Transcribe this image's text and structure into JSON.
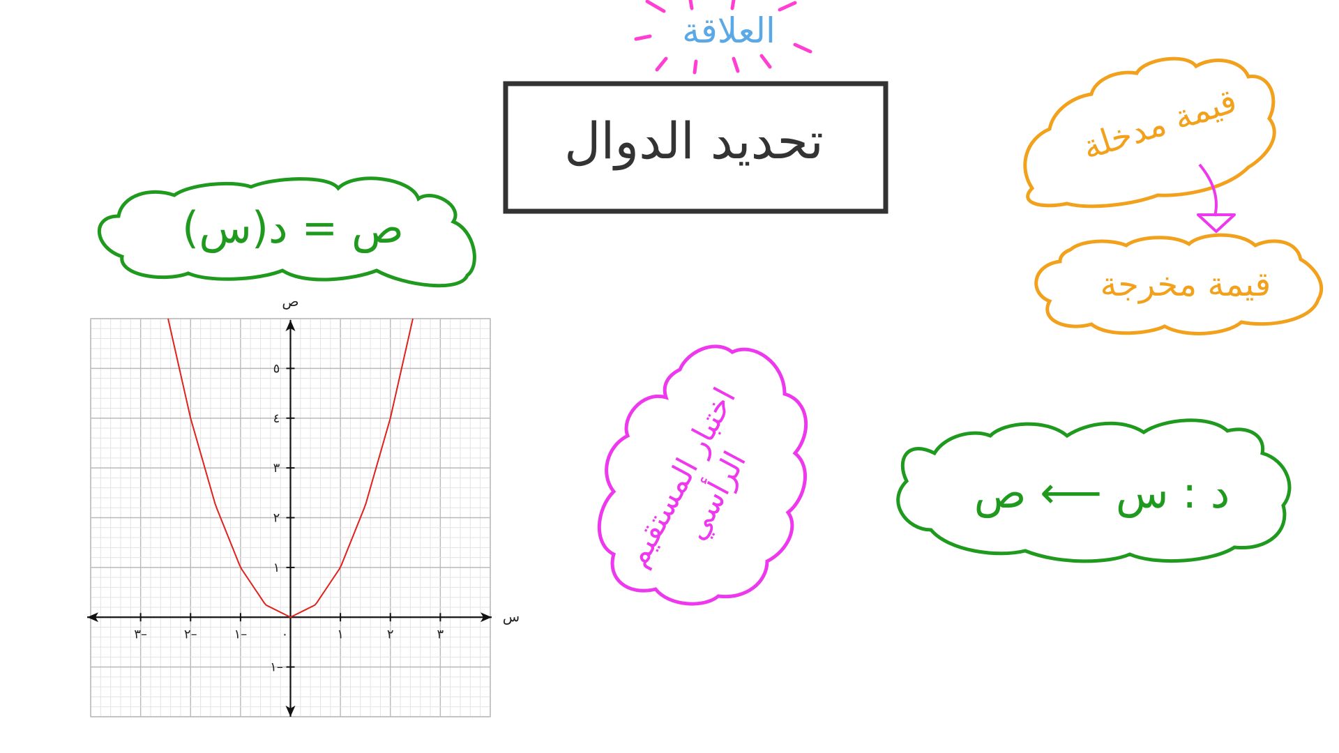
{
  "title": {
    "text": "تحديد الدوال",
    "color": "#333333"
  },
  "relation_label": {
    "text": "العلاقة",
    "color": "#5aa9e6",
    "burst_color": "#ff3fd2"
  },
  "clouds": {
    "equation": {
      "text": "ص = د(س)",
      "color": "#1f9a1f"
    },
    "mapping": {
      "text": "د : س ⟵ ص",
      "color": "#1f9a1f"
    },
    "input": {
      "text": "قيمة مدخلة",
      "color": "#f2a11d"
    },
    "output": {
      "text": "قيمة مخرجة",
      "color": "#f2a11d"
    },
    "vertical_test": {
      "line1": "اختبار المستقيم",
      "line2": "الرأسي",
      "color": "#ee38ee"
    }
  },
  "arrow_color": "#ee38ee",
  "chart_data": {
    "type": "line",
    "x_axis_label": "س",
    "y_axis_label": "ص",
    "x_ticks": [
      -3,
      -2,
      -1,
      0,
      1,
      2,
      3
    ],
    "x_tick_labels": [
      "٣–",
      "٢–",
      "١–",
      "٠",
      "١",
      "٢",
      "٣"
    ],
    "y_ticks": [
      -1,
      1,
      2,
      3,
      4,
      5
    ],
    "y_tick_labels": [
      "١–",
      "١",
      "٢",
      "٣",
      "٤",
      "٥"
    ],
    "xlim": [
      -4,
      4
    ],
    "ylim": [
      -2,
      6
    ],
    "grid": true,
    "series": [
      {
        "color": "#e0201b",
        "x": [
          -2.45,
          -2.0,
          -1.5,
          -1.0,
          -0.5,
          0,
          0.5,
          1.0,
          1.5,
          2.0,
          2.45
        ],
        "y": [
          6.0,
          4.0,
          2.25,
          1.0,
          0.25,
          0,
          0.25,
          1.0,
          2.25,
          4.0,
          6.0
        ]
      }
    ]
  }
}
